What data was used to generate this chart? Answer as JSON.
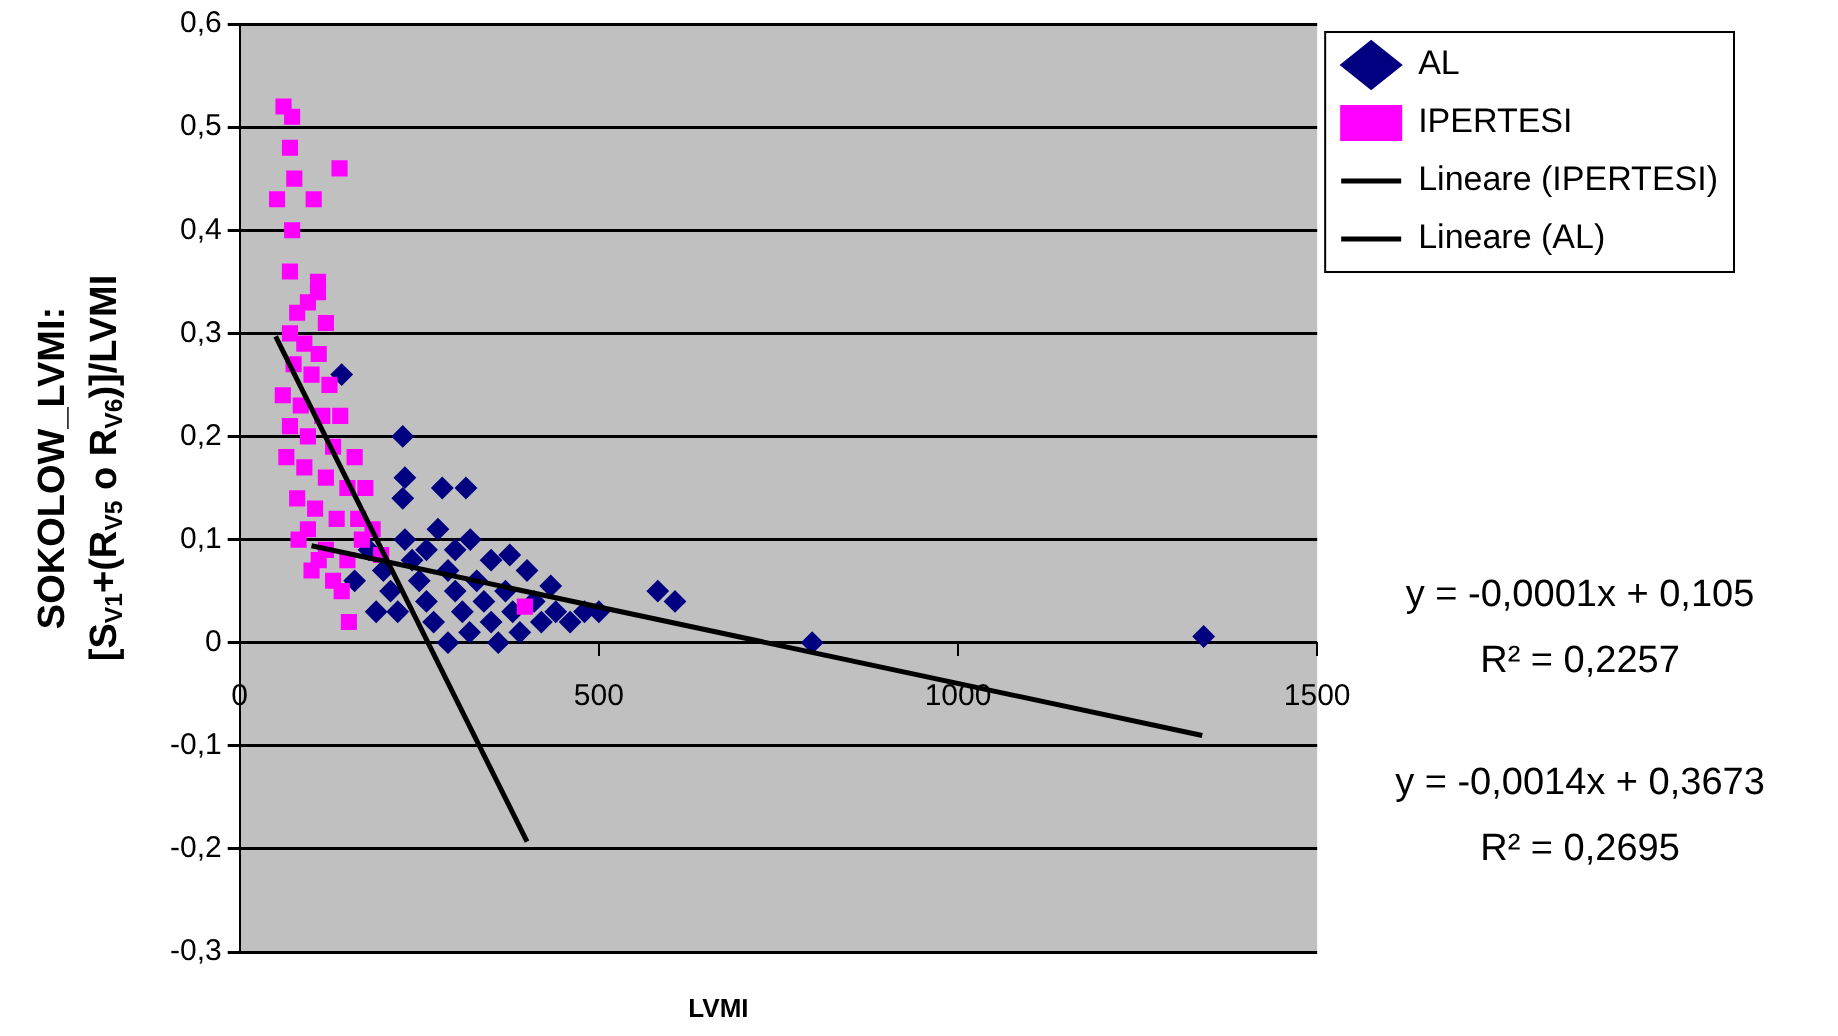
{
  "chart_data": {
    "type": "scatter",
    "xlabel": "LVMI",
    "ylabel": "SOKOLOW_LVMI:\n[S$_{V1}$+(R$_{V5}$ o R$_{V6}$)]/LVMI",
    "xlim": [
      0,
      1500
    ],
    "xticks": [
      0,
      500,
      1000,
      1500
    ],
    "ylim": [
      -0.3,
      0.6
    ],
    "yticks": [
      {
        "value": -0.3,
        "label": "-0,3"
      },
      {
        "value": -0.2,
        "label": "-0,2"
      },
      {
        "value": -0.1,
        "label": "-0,1"
      },
      {
        "value": 0,
        "label": "0"
      },
      {
        "value": 0.1,
        "label": "0,1"
      },
      {
        "value": 0.2,
        "label": "0,2"
      },
      {
        "value": 0.3,
        "label": "0,3"
      },
      {
        "value": 0.4,
        "label": "0,4"
      },
      {
        "value": 0.5,
        "label": "0,5"
      },
      {
        "value": 0.6,
        "label": "0,6"
      }
    ],
    "grid": "y",
    "legend": "top right",
    "series": [
      {
        "name": "AL",
        "marker": "diamond",
        "color": "#000080",
        "x": [
          142,
          227,
          230,
          282,
          315,
          227,
          276,
          321,
          376,
          433,
          582,
          606,
          797,
          1342,
          180,
          200,
          210,
          220,
          240,
          250,
          260,
          270,
          290,
          300,
          310,
          320,
          330,
          340,
          350,
          360,
          370,
          380,
          390,
          410,
          420,
          440,
          460,
          480,
          500,
          230,
          260,
          300,
          350,
          400,
          190,
          160,
          290
        ],
        "values": [
          0.26,
          0.2,
          0.16,
          0.15,
          0.15,
          0.14,
          0.11,
          0.1,
          0.085,
          0.055,
          0.05,
          0.04,
          0,
          0.006,
          0.09,
          0.07,
          0.05,
          0.03,
          0.08,
          0.06,
          0.04,
          0.02,
          0.07,
          0.05,
          0.03,
          0.01,
          0.06,
          0.04,
          0.02,
          0,
          0.05,
          0.03,
          0.01,
          0.04,
          0.02,
          0.03,
          0.02,
          0.03,
          0.03,
          0.1,
          0.09,
          0.09,
          0.08,
          0.07,
          0.03,
          0.06,
          0
        ]
      },
      {
        "name": "IPERTESI",
        "marker": "square",
        "color": "#ff00ff",
        "x": [
          61,
          73,
          70,
          139,
          76,
          103,
          52,
          73,
          70,
          109,
          109,
          80,
          95,
          120,
          70,
          90,
          110,
          75,
          100,
          125,
          60,
          85,
          115,
          140,
          70,
          95,
          130,
          160,
          65,
          90,
          120,
          150,
          175,
          80,
          105,
          135,
          165,
          185,
          95,
          120,
          150,
          82,
          100,
          130,
          142,
          152,
          197,
          397,
          170,
          110
        ],
        "values": [
          0.52,
          0.51,
          0.48,
          0.46,
          0.45,
          0.43,
          0.43,
          0.4,
          0.36,
          0.35,
          0.34,
          0.32,
          0.33,
          0.31,
          0.3,
          0.29,
          0.28,
          0.27,
          0.26,
          0.25,
          0.24,
          0.23,
          0.22,
          0.22,
          0.21,
          0.2,
          0.19,
          0.18,
          0.18,
          0.17,
          0.16,
          0.15,
          0.15,
          0.14,
          0.13,
          0.12,
          0.12,
          0.11,
          0.11,
          0.09,
          0.08,
          0.1,
          0.07,
          0.06,
          0.05,
          0.02,
          0.085,
          0.035,
          0.1,
          0.08
        ]
      },
      {
        "name": "Lineare (IPERTESI)",
        "type": "line",
        "marker": "none",
        "color": "#000000",
        "x": [
          50,
          400
        ],
        "values": [
          0.297,
          -0.193
        ]
      },
      {
        "name": "Lineare (AL)",
        "type": "line",
        "marker": "none",
        "color": "#000000",
        "x": [
          100,
          1340
        ],
        "values": [
          0.094,
          -0.09
        ]
      }
    ],
    "annotations": [
      "y = -0,0001x + 0,105",
      "R² = 0,2257",
      "y = -0,0014x + 0,3673",
      "R² = 0,2695"
    ]
  }
}
